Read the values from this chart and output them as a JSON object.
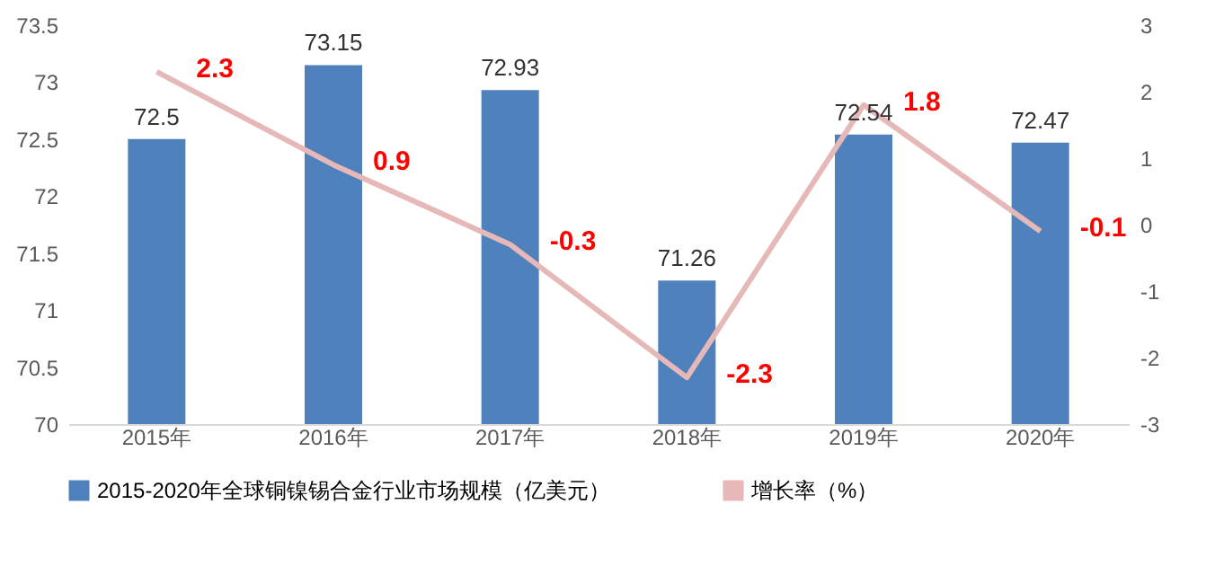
{
  "chart_data": {
    "type": "bar",
    "categories": [
      "2015年",
      "2016年",
      "2017年",
      "2018年",
      "2019年",
      "2020年"
    ],
    "series": [
      {
        "name": "2015-2020年全球铜镍锡合金行业市场规模（亿美元）",
        "color": "#4f81bd",
        "values": [
          72.5,
          73.15,
          72.93,
          71.26,
          72.54,
          72.47
        ]
      },
      {
        "name": "增长率（%）",
        "type": "line",
        "axis": "y2",
        "color": "#e6b9b8",
        "values": [
          2.3,
          0.9,
          -0.3,
          -2.3,
          1.8,
          -0.1
        ]
      }
    ],
    "ylim": [
      70,
      73.5
    ],
    "yticks": [
      70,
      70.5,
      71,
      71.5,
      72,
      72.5,
      73,
      73.5
    ],
    "y2lim": [
      -3,
      3
    ],
    "y2ticks": [
      -3,
      -2,
      -1,
      0,
      1,
      2,
      3
    ],
    "data_labels": true,
    "grid": false,
    "legend": "bottom"
  }
}
